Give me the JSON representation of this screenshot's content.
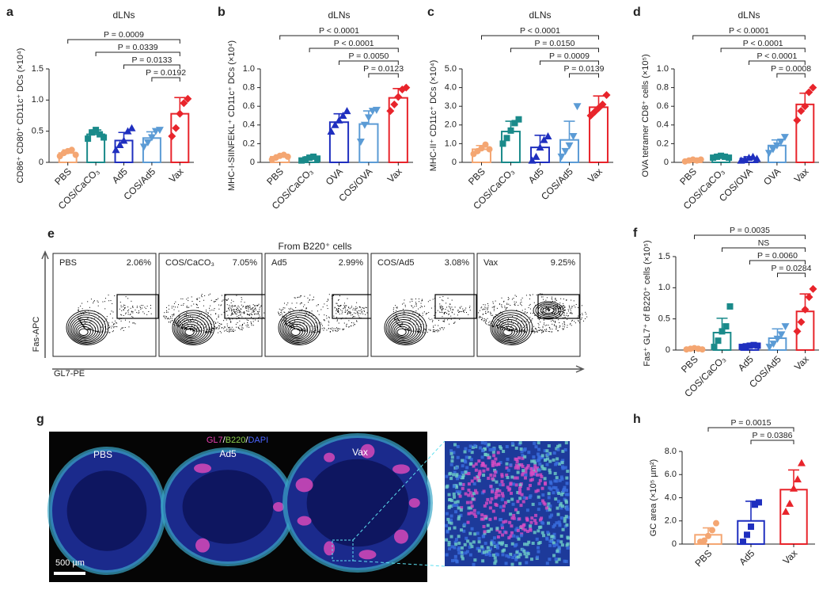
{
  "chart_data": [
    {
      "panel": "a",
      "type": "bar",
      "title": "dLNs",
      "ylabel": "CD86⁺ CD80⁺ CD11c⁺ DCs (×10⁴)",
      "categories": [
        "PBS",
        "COS/CaCO₃",
        "Ad5",
        "COS/Ad5",
        "Vax"
      ],
      "colors": [
        "#f4a672",
        "#1a8a8a",
        "#1f2fbf",
        "#5b9bd5",
        "#e8242b"
      ],
      "markers": [
        "circle",
        "square",
        "triangle",
        "triangle-down",
        "diamond"
      ],
      "values": [
        0.15,
        0.45,
        0.35,
        0.39,
        0.78
      ],
      "errors": [
        0.05,
        0.07,
        0.13,
        0.1,
        0.26
      ],
      "points": [
        [
          0.1,
          0.15,
          0.18,
          0.2,
          0.12
        ],
        [
          0.38,
          0.48,
          0.52,
          0.45,
          0.4
        ],
        [
          0.2,
          0.28,
          0.35,
          0.5,
          0.55
        ],
        [
          0.25,
          0.32,
          0.4,
          0.5,
          0.52
        ],
        [
          0.42,
          0.55,
          0.78,
          0.95,
          1.02
        ]
      ],
      "ylim": [
        0,
        1.5
      ],
      "yticks": [
        0,
        0.5,
        {
          "value": 1,
          "label": "1.0"
        },
        1.5
      ],
      "comparisons": [
        {
          "label": "P = 0.0009",
          "from": 0,
          "to": 4
        },
        {
          "label": "P = 0.0339",
          "from": 1,
          "to": 4
        },
        {
          "label": "P = 0.0133",
          "from": 2,
          "to": 4
        },
        {
          "label": "P = 0.0192",
          "from": 3,
          "to": 4
        }
      ]
    },
    {
      "panel": "b",
      "type": "bar",
      "title": "dLNs",
      "ylabel": "MHC-I-SIINFEKL⁺ CD11c⁺ DCs (×10⁴)",
      "categories": [
        "PBS",
        "COS/CaCO₃",
        "OVA",
        "COS/OVA",
        "Vax"
      ],
      "colors": [
        "#f4a672",
        "#1a8a8a",
        "#1f2fbf",
        "#5b9bd5",
        "#e8242b"
      ],
      "markers": [
        "circle",
        "square",
        "triangle",
        "triangle-down",
        "diamond"
      ],
      "values": [
        0.06,
        0.04,
        0.43,
        0.41,
        0.69
      ],
      "errors": [
        0.02,
        0.02,
        0.09,
        0.14,
        0.1
      ],
      "points": [
        [
          0.03,
          0.05,
          0.07,
          0.08,
          0.06
        ],
        [
          0.02,
          0.03,
          0.05,
          0.06,
          0.04
        ],
        [
          0.33,
          0.4,
          0.45,
          0.5,
          0.55
        ],
        [
          0.22,
          0.4,
          0.48,
          0.55,
          0.56
        ],
        [
          0.55,
          0.62,
          0.7,
          0.78,
          0.8
        ]
      ],
      "ylim": [
        0,
        1
      ],
      "yticks": [
        0,
        0.2,
        0.4,
        0.6,
        0.8,
        {
          "value": 1,
          "label": "1.0"
        }
      ],
      "comparisons": [
        {
          "label": "P < 0.0001",
          "from": 0,
          "to": 4
        },
        {
          "label": "P < 0.0001",
          "from": 1,
          "to": 4
        },
        {
          "label": "P = 0.0050",
          "from": 2,
          "to": 4
        },
        {
          "label": "P = 0.0123",
          "from": 3,
          "to": 4
        }
      ]
    },
    {
      "panel": "c",
      "type": "bar",
      "title": "dLNs",
      "ylabel": "MHC-II⁺ CD11c⁺ DCs (×10⁴)",
      "categories": [
        "PBS",
        "COS/CaCO₃",
        "Ad5",
        "COS/Ad5",
        "Vax"
      ],
      "colors": [
        "#f4a672",
        "#1a8a8a",
        "#1f2fbf",
        "#5b9bd5",
        "#e8242b"
      ],
      "markers": [
        "circle",
        "square",
        "triangle",
        "triangle-down",
        "diamond"
      ],
      "values": [
        0.7,
        1.65,
        0.8,
        1.2,
        2.95
      ],
      "errors": [
        0.2,
        0.55,
        0.65,
        1.0,
        0.6
      ],
      "points": [
        [
          0.45,
          0.6,
          0.75,
          0.95,
          0.7
        ],
        [
          1.0,
          1.3,
          1.7,
          2.1,
          2.3
        ],
        [
          0.1,
          0.3,
          0.8,
          1.2,
          1.4
        ],
        [
          0.3,
          0.6,
          0.9,
          1.4,
          3.0
        ],
        [
          2.5,
          2.7,
          2.9,
          3.1,
          3.6
        ]
      ],
      "ylim": [
        0,
        5
      ],
      "yticks": [
        0,
        {
          "value": 1,
          "label": "1.0"
        },
        {
          "value": 2,
          "label": "2.0"
        },
        {
          "value": 3,
          "label": "3.0"
        },
        {
          "value": 4,
          "label": "4.0"
        },
        {
          "value": 5,
          "label": "5.0"
        }
      ],
      "comparisons": [
        {
          "label": "P < 0.0001",
          "from": 0,
          "to": 4
        },
        {
          "label": "P = 0.0150",
          "from": 1,
          "to": 4
        },
        {
          "label": "P = 0.0009",
          "from": 2,
          "to": 4
        },
        {
          "label": "P = 0.0139",
          "from": 3,
          "to": 4
        }
      ]
    },
    {
      "panel": "d",
      "type": "bar",
      "title": "dLNs",
      "ylabel": "OVA tetramer CD8⁺ cells (×10⁵)",
      "categories": [
        "PBS",
        "COS/CaCO₃",
        "COS/OVA",
        "OVA",
        "Vax"
      ],
      "colors": [
        "#f4a672",
        "#1a8a8a",
        "#1f2fbf",
        "#5b9bd5",
        "#e8242b"
      ],
      "markers": [
        "circle",
        "square",
        "triangle",
        "triangle-down",
        "diamond"
      ],
      "values": [
        0.02,
        0.06,
        0.04,
        0.18,
        0.62
      ],
      "errors": [
        0.01,
        0.01,
        0.02,
        0.06,
        0.12
      ],
      "points": [
        [
          0.01,
          0.02,
          0.03,
          0.02,
          0.03
        ],
        [
          0.05,
          0.06,
          0.07,
          0.06,
          0.05
        ],
        [
          0.02,
          0.03,
          0.05,
          0.06,
          0.04
        ],
        [
          0.1,
          0.14,
          0.18,
          0.22,
          0.27
        ],
        [
          0.45,
          0.55,
          0.6,
          0.75,
          0.8
        ]
      ],
      "ylim": [
        0,
        1
      ],
      "yticks": [
        0,
        0.2,
        0.4,
        0.6,
        0.8,
        {
          "value": 1,
          "label": "1.0"
        }
      ],
      "comparisons": [
        {
          "label": "P < 0.0001",
          "from": 0,
          "to": 4
        },
        {
          "label": "P < 0.0001",
          "from": 1,
          "to": 4
        },
        {
          "label": "P < 0.0001",
          "from": 2,
          "to": 4
        },
        {
          "label": "P = 0.0008",
          "from": 3,
          "to": 4
        }
      ]
    },
    {
      "panel": "f",
      "type": "bar",
      "ylabel": "Fas⁺ GL7⁺ of B220⁺ cells (×10⁵)",
      "categories": [
        "PBS",
        "COS/CaCO₃",
        "Ad5",
        "COS/Ad5",
        "Vax"
      ],
      "colors": [
        "#f4a672",
        "#1a8a8a",
        "#1f2fbf",
        "#5b9bd5",
        "#e8242b"
      ],
      "markers": [
        "circle",
        "square",
        "square",
        "triangle-down",
        "diamond"
      ],
      "values": [
        0.02,
        0.28,
        0.07,
        0.19,
        0.62
      ],
      "errors": [
        0.01,
        0.23,
        0.02,
        0.15,
        0.28
      ],
      "points": [
        [
          0.01,
          0.02,
          0.03,
          0.02,
          0.01
        ],
        [
          0.05,
          0.15,
          0.3,
          0.38,
          0.7
        ],
        [
          0.05,
          0.06,
          0.07,
          0.08,
          0.07
        ],
        [
          0.05,
          0.1,
          0.18,
          0.25,
          0.38
        ],
        [
          0.3,
          0.45,
          0.65,
          0.85,
          0.98
        ]
      ],
      "ylim": [
        0,
        1.5
      ],
      "yticks": [
        0,
        0.5,
        {
          "value": 1,
          "label": "1.0"
        },
        1.5
      ],
      "comparisons": [
        {
          "label": "P = 0.0035",
          "from": 0,
          "to": 4
        },
        {
          "label": "NS",
          "from": 1,
          "to": 4
        },
        {
          "label": "P = 0.0060",
          "from": 2,
          "to": 4
        },
        {
          "label": "P = 0.0284",
          "from": 3,
          "to": 4
        }
      ]
    },
    {
      "panel": "h",
      "type": "bar",
      "ylabel": "GC area (×10⁵ µm²)",
      "categories": [
        "PBS",
        "Ad5",
        "Vax"
      ],
      "colors": [
        "#f4a672",
        "#1f2fbf",
        "#e8242b"
      ],
      "markers": [
        "circle",
        "square",
        "triangle"
      ],
      "values": [
        0.8,
        2.0,
        4.7
      ],
      "errors": [
        0.6,
        1.7,
        1.7
      ],
      "points": [
        [
          0.2,
          0.3,
          0.7,
          1.2,
          1.8
        ],
        [
          0.2,
          0.8,
          1.5,
          3.4,
          3.6
        ],
        [
          2.8,
          3.5,
          4.8,
          5.6,
          7.0
        ]
      ],
      "ylim": [
        0,
        8
      ],
      "yticks": [
        0,
        {
          "value": 2,
          "label": "2.0"
        },
        {
          "value": 4,
          "label": "4.0"
        },
        {
          "value": 6,
          "label": "6.0"
        },
        {
          "value": 8,
          "label": "8.0"
        }
      ],
      "comparisons": [
        {
          "label": "P = 0.0015",
          "from": 0,
          "to": 2
        },
        {
          "label": "P = 0.0386",
          "from": 1,
          "to": 2
        }
      ]
    }
  ],
  "flow": {
    "panel": "e",
    "title": "From B220⁺ cells",
    "xlabel": "GL7-PE",
    "ylabel": "Fas-APC",
    "plots": [
      {
        "name": "PBS",
        "percent": "2.06%"
      },
      {
        "name": "COS/CaCO₃",
        "percent": "7.05%"
      },
      {
        "name": "Ad5",
        "percent": "2.99%"
      },
      {
        "name": "COS/Ad5",
        "percent": "3.08%"
      },
      {
        "name": "Vax",
        "percent": "9.25%"
      }
    ]
  },
  "microscopy": {
    "panel": "g",
    "samples": [
      "PBS",
      "Ad5",
      "Vax"
    ],
    "stains": [
      {
        "name": "GL7",
        "color": "#e83fb0"
      },
      {
        "name": "B220",
        "color": "#8ccf4d"
      },
      {
        "name": "DAPI",
        "color": "#4a63ff"
      }
    ],
    "separator": "/",
    "scale_bar": "500 µm"
  }
}
